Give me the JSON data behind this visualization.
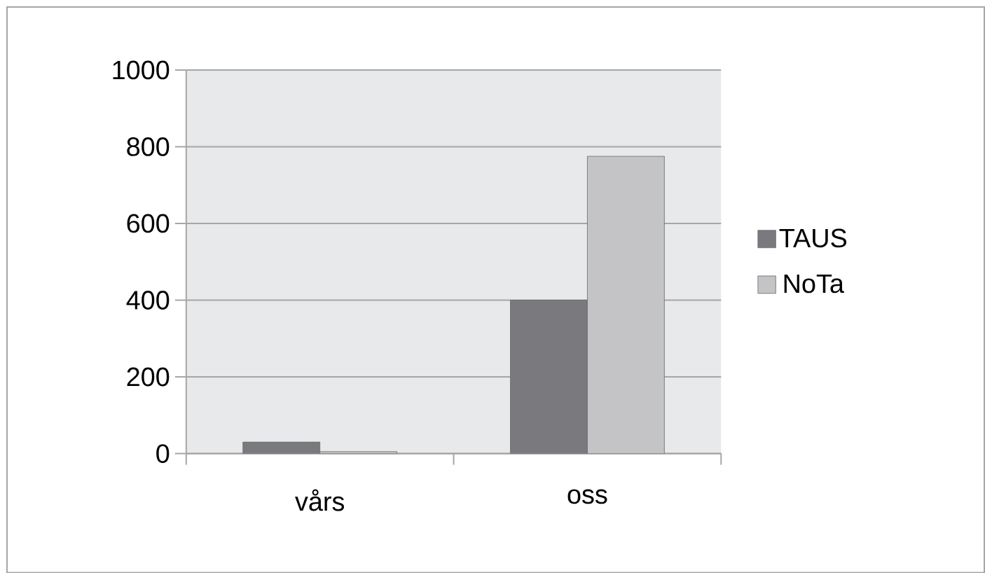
{
  "chart_data": {
    "type": "bar",
    "categories": [
      "vårs",
      "oss"
    ],
    "series": [
      {
        "name": "TAUS",
        "color": "#7a7a7e",
        "values": [
          30,
          400
        ]
      },
      {
        "name": "NoTa",
        "color": "#c4c4c6",
        "values": [
          5,
          775
        ]
      }
    ],
    "ylim": [
      0,
      1000
    ],
    "yticks": [
      0,
      200,
      400,
      600,
      800,
      1000
    ],
    "grid": "y",
    "legend": "right"
  }
}
